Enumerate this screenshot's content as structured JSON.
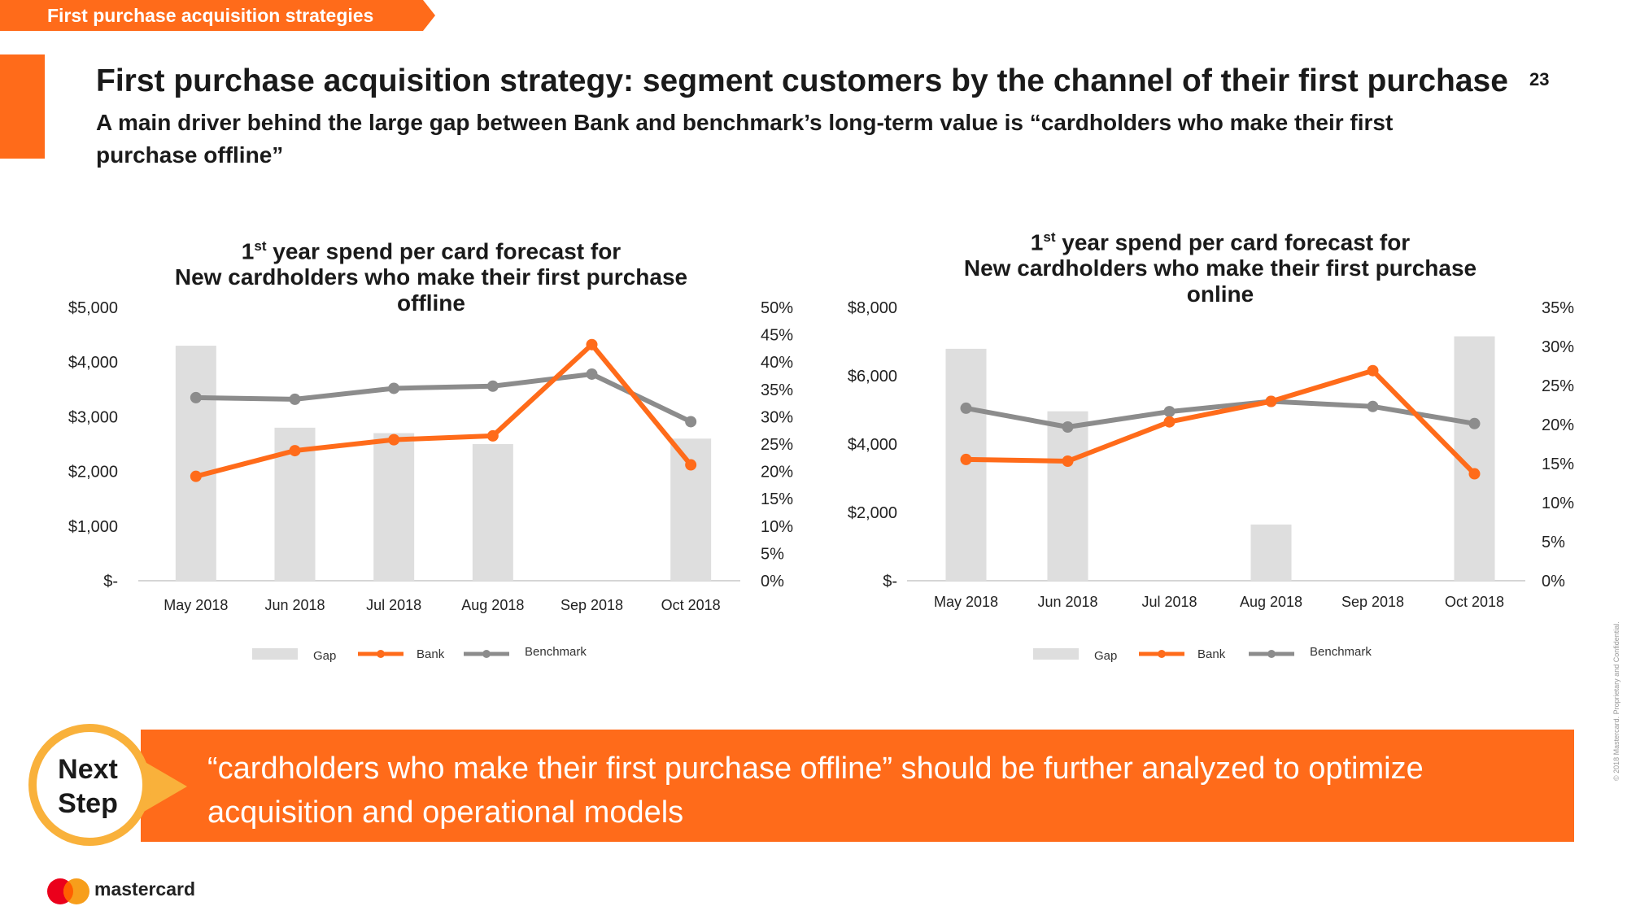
{
  "section_tag": "First purchase acquisition strategies",
  "page_title": "First purchase acquisition strategy: segment customers by the channel of their first purchase",
  "page_subtitle": "A main driver behind the large gap between Bank and benchmark’s long-term value is “cardholders who make their first purchase offline”",
  "page_number": "23",
  "colors": {
    "accent": "#FF6B1A",
    "gap": "#DEDEDE",
    "bank": "#FF6B1A",
    "benchmark": "#8C8C8C",
    "circle": "#F9B13B"
  },
  "chart_data": [
    {
      "type": "bar",
      "title_line1_prefix": "1",
      "title_line1_sup": "st",
      "title_line1_rest": " year spend per card forecast for",
      "title_line2": "New cardholders who make their first purchase",
      "title_line3": "offline",
      "categories": [
        "May 2018",
        "Jun 2018",
        "Jul 2018",
        "Aug 2018",
        "Sep 2018",
        "Oct 2018"
      ],
      "y_left_ticks": [
        "$5,000",
        "$4,000",
        "$3,000",
        "$2,000",
        "$1,000",
        "$-"
      ],
      "y_right_ticks": [
        "50%",
        "45%",
        "40%",
        "35%",
        "30%",
        "25%",
        "20%",
        "15%",
        "10%",
        "5%",
        "0%"
      ],
      "ylim_left": [
        0,
        5000
      ],
      "ylim_right": [
        0,
        0.5
      ],
      "series": [
        {
          "name": "Gap",
          "type": "bar",
          "axis": "right",
          "values": [
            0.43,
            0.28,
            0.27,
            0.25,
            0,
            0.26
          ]
        },
        {
          "name": "Bank",
          "type": "line",
          "axis": "left",
          "values": [
            1910,
            2380,
            2580,
            2650,
            4320,
            2120
          ]
        },
        {
          "name": "Benchmark",
          "type": "line",
          "axis": "left",
          "values": [
            3350,
            3320,
            3520,
            3560,
            3780,
            2910
          ]
        }
      ],
      "legend": [
        "Gap",
        "Bank",
        "Benchmark"
      ]
    },
    {
      "type": "bar",
      "title_line1_prefix": "1",
      "title_line1_sup": "st",
      "title_line1_rest": " year spend per card forecast for",
      "title_line2": "New cardholders who make their first purchase",
      "title_line3": "online",
      "categories": [
        "May 2018",
        "Jun 2018",
        "Jul 2018",
        "Aug 2018",
        "Sep 2018",
        "Oct 2018"
      ],
      "y_left_ticks": [
        "$8,000",
        "$6,000",
        "$4,000",
        "$2,000",
        "$-"
      ],
      "y_right_ticks": [
        "35%",
        "30%",
        "25%",
        "20%",
        "15%",
        "10%",
        "5%",
        "0%"
      ],
      "ylim_left": [
        0,
        8000
      ],
      "ylim_right": [
        0,
        0.35
      ],
      "series": [
        {
          "name": "Gap",
          "type": "bar",
          "axis": "right",
          "values": [
            0.297,
            0.217,
            0,
            0.072,
            0,
            0.313
          ]
        },
        {
          "name": "Bank",
          "type": "line",
          "axis": "left",
          "values": [
            3550,
            3500,
            4650,
            5250,
            6150,
            3130
          ]
        },
        {
          "name": "Benchmark",
          "type": "line",
          "axis": "left",
          "values": [
            5050,
            4500,
            4950,
            5250,
            5100,
            4600
          ]
        }
      ],
      "legend": [
        "Gap",
        "Bank",
        "Benchmark"
      ]
    }
  ],
  "next_step": {
    "label_line1": "Next",
    "label_line2": "Step",
    "text": "“cardholders who make their first purchase offline” should be further analyzed to optimize acquisition and operational models"
  },
  "footer": {
    "brand": "mastercard",
    "copyright": "© 2018 Mastercard. Proprietary and Confidential."
  }
}
